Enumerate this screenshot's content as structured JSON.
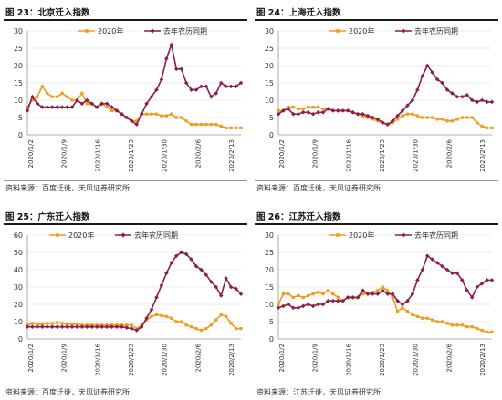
{
  "chart_data": [
    {
      "type": "line",
      "title": "图 23：北京迁入指数",
      "source": "资料来源：百度迁徙，天风证券研究所",
      "x_ticks": [
        "2020/1/2",
        "2020/1/9",
        "2020/1/16",
        "2020/1/23",
        "2020/1/30",
        "2020/2/6",
        "2020/2/13"
      ],
      "ylim": [
        0,
        30
      ],
      "yticks": [
        "0",
        "5",
        "10",
        "15",
        "20",
        "25",
        "30"
      ],
      "legend_position": "top-center",
      "series": [
        {
          "name": "2020年",
          "color": "#f29a1b",
          "marker": "square",
          "values": [
            8,
            10,
            11,
            14,
            12,
            11,
            11,
            12,
            11,
            10,
            10,
            12,
            9,
            9,
            8,
            9,
            8,
            7,
            7,
            6,
            5,
            4,
            4,
            6,
            6,
            6,
            6,
            5.5,
            5.5,
            6,
            5,
            5,
            4,
            3,
            3,
            3,
            3,
            3,
            3,
            2.5,
            2,
            2,
            2,
            2
          ]
        },
        {
          "name": "去年农历同期",
          "color": "#8a1f4a",
          "marker": "diamond",
          "values": [
            7,
            11,
            9,
            8,
            8,
            8,
            8,
            8,
            8,
            8,
            10,
            9,
            10,
            9,
            8,
            9,
            9,
            8,
            7,
            6,
            5,
            4,
            3,
            6,
            9,
            11,
            13,
            16,
            22,
            26,
            19,
            19,
            15,
            13,
            13,
            14,
            14,
            11,
            12,
            15,
            14,
            14,
            14,
            15
          ]
        }
      ]
    },
    {
      "type": "line",
      "title": "图 24：上海迁入指数",
      "source": "资料来源：百度迁徙，天风证券研究所",
      "x_ticks": [
        "2020/1/2",
        "2020/1/9",
        "2020/1/16",
        "2020/1/23",
        "2020/1/30",
        "2020/2/6",
        "2020/2/13"
      ],
      "ylim": [
        0,
        30
      ],
      "yticks": [
        "0",
        "5",
        "10",
        "15",
        "20",
        "25",
        "30"
      ],
      "legend_position": "top-center",
      "series": [
        {
          "name": "2020年",
          "color": "#f29a1b",
          "marker": "square",
          "values": [
            7,
            7,
            8,
            8,
            7.5,
            7.5,
            8,
            8,
            8,
            7.5,
            7.5,
            7,
            7,
            7,
            7,
            6.5,
            6,
            5.5,
            5,
            4.5,
            4,
            3.5,
            3,
            3.5,
            4.5,
            5.5,
            6,
            6,
            5.5,
            5,
            5,
            5,
            4.5,
            4.5,
            4,
            4,
            4.5,
            5,
            5,
            5,
            3.5,
            2.5,
            2,
            2
          ]
        },
        {
          "name": "去年农历同期",
          "color": "#8a1f4a",
          "marker": "diamond",
          "values": [
            6,
            7,
            7.5,
            6,
            6,
            6.5,
            6.5,
            6,
            6.5,
            6.5,
            7.5,
            7,
            7,
            7,
            7,
            6.5,
            6,
            6,
            5.5,
            5,
            4.5,
            3.5,
            3,
            4,
            5.5,
            7,
            8.5,
            10,
            13,
            17,
            20,
            18,
            16,
            15,
            13,
            12,
            11,
            11,
            11.5,
            10,
            9.5,
            10,
            9.5,
            9.5
          ]
        }
      ]
    },
    {
      "type": "line",
      "title": "图 25：广东迁入指数",
      "source": "资料来源：百度迁徙，天风证券研究所",
      "x_ticks": [
        "2020/1/2",
        "2020/1/9",
        "2020/1/16",
        "2020/1/23",
        "2020/1/30",
        "2020/2/6",
        "2020/2/13"
      ],
      "ylim": [
        0,
        60
      ],
      "yticks": [
        "0",
        "10",
        "20",
        "30",
        "40",
        "50",
        "60"
      ],
      "legend_position": "top-left",
      "series": [
        {
          "name": "2020年",
          "color": "#f29a1b",
          "marker": "square",
          "values": [
            8,
            9,
            8.5,
            8.5,
            9,
            9,
            9.5,
            9,
            8.5,
            8.5,
            8.5,
            8,
            8,
            8,
            8,
            8,
            8,
            8,
            8,
            8,
            8,
            8,
            6,
            8,
            11,
            13,
            14,
            13.5,
            13,
            12,
            10,
            10,
            8,
            7,
            6,
            5,
            6,
            8,
            11,
            14,
            13,
            9,
            6,
            6
          ]
        },
        {
          "name": "去年农历同期",
          "color": "#8a1f4a",
          "marker": "diamond",
          "values": [
            7,
            7,
            7,
            7,
            7,
            7,
            7,
            7,
            7,
            7,
            7,
            7,
            7,
            7,
            7,
            7,
            7,
            7,
            7,
            7,
            6.5,
            6,
            5,
            7,
            12,
            17,
            24,
            31,
            38,
            44,
            48,
            50,
            49,
            46,
            42,
            40,
            37,
            33,
            30,
            25,
            35,
            30,
            29,
            26
          ]
        }
      ]
    },
    {
      "type": "line",
      "title": "图 26：江苏迁入指数",
      "source": "资料来源：江苏迁徙，天风证券研究所",
      "x_ticks": [
        "2020/1/2",
        "2020/1/9",
        "2020/1/16",
        "2020/1/23",
        "2020/1/30",
        "2020/2/6",
        "2020/2/13"
      ],
      "ylim": [
        0,
        30
      ],
      "yticks": [
        "0",
        "5",
        "10",
        "15",
        "20",
        "25",
        "30"
      ],
      "legend_position": "top-center",
      "series": [
        {
          "name": "2020年",
          "color": "#f29a1b",
          "marker": "square",
          "values": [
            10,
            13,
            13,
            12,
            12.5,
            12,
            12.5,
            13,
            13.5,
            13,
            14,
            13,
            12,
            11,
            12,
            12,
            12,
            13,
            13,
            13.5,
            14,
            15,
            14,
            12,
            8,
            9,
            8,
            7,
            6.5,
            6,
            6,
            5.5,
            5,
            5,
            4.5,
            4,
            4,
            4,
            3.5,
            3.5,
            3,
            2.5,
            2,
            2
          ]
        },
        {
          "name": "去年农历同期",
          "color": "#8a1f4a",
          "marker": "diamond",
          "values": [
            9,
            9.5,
            10,
            9,
            9,
            9.5,
            10,
            9.5,
            10,
            10,
            11,
            11,
            11,
            11,
            12,
            12,
            12,
            14,
            13,
            13,
            13,
            14,
            13,
            13,
            11,
            10,
            11,
            13,
            17,
            20,
            24,
            23,
            22,
            21,
            20,
            19,
            19,
            17,
            14,
            12,
            15,
            16,
            17,
            17
          ]
        }
      ]
    }
  ]
}
